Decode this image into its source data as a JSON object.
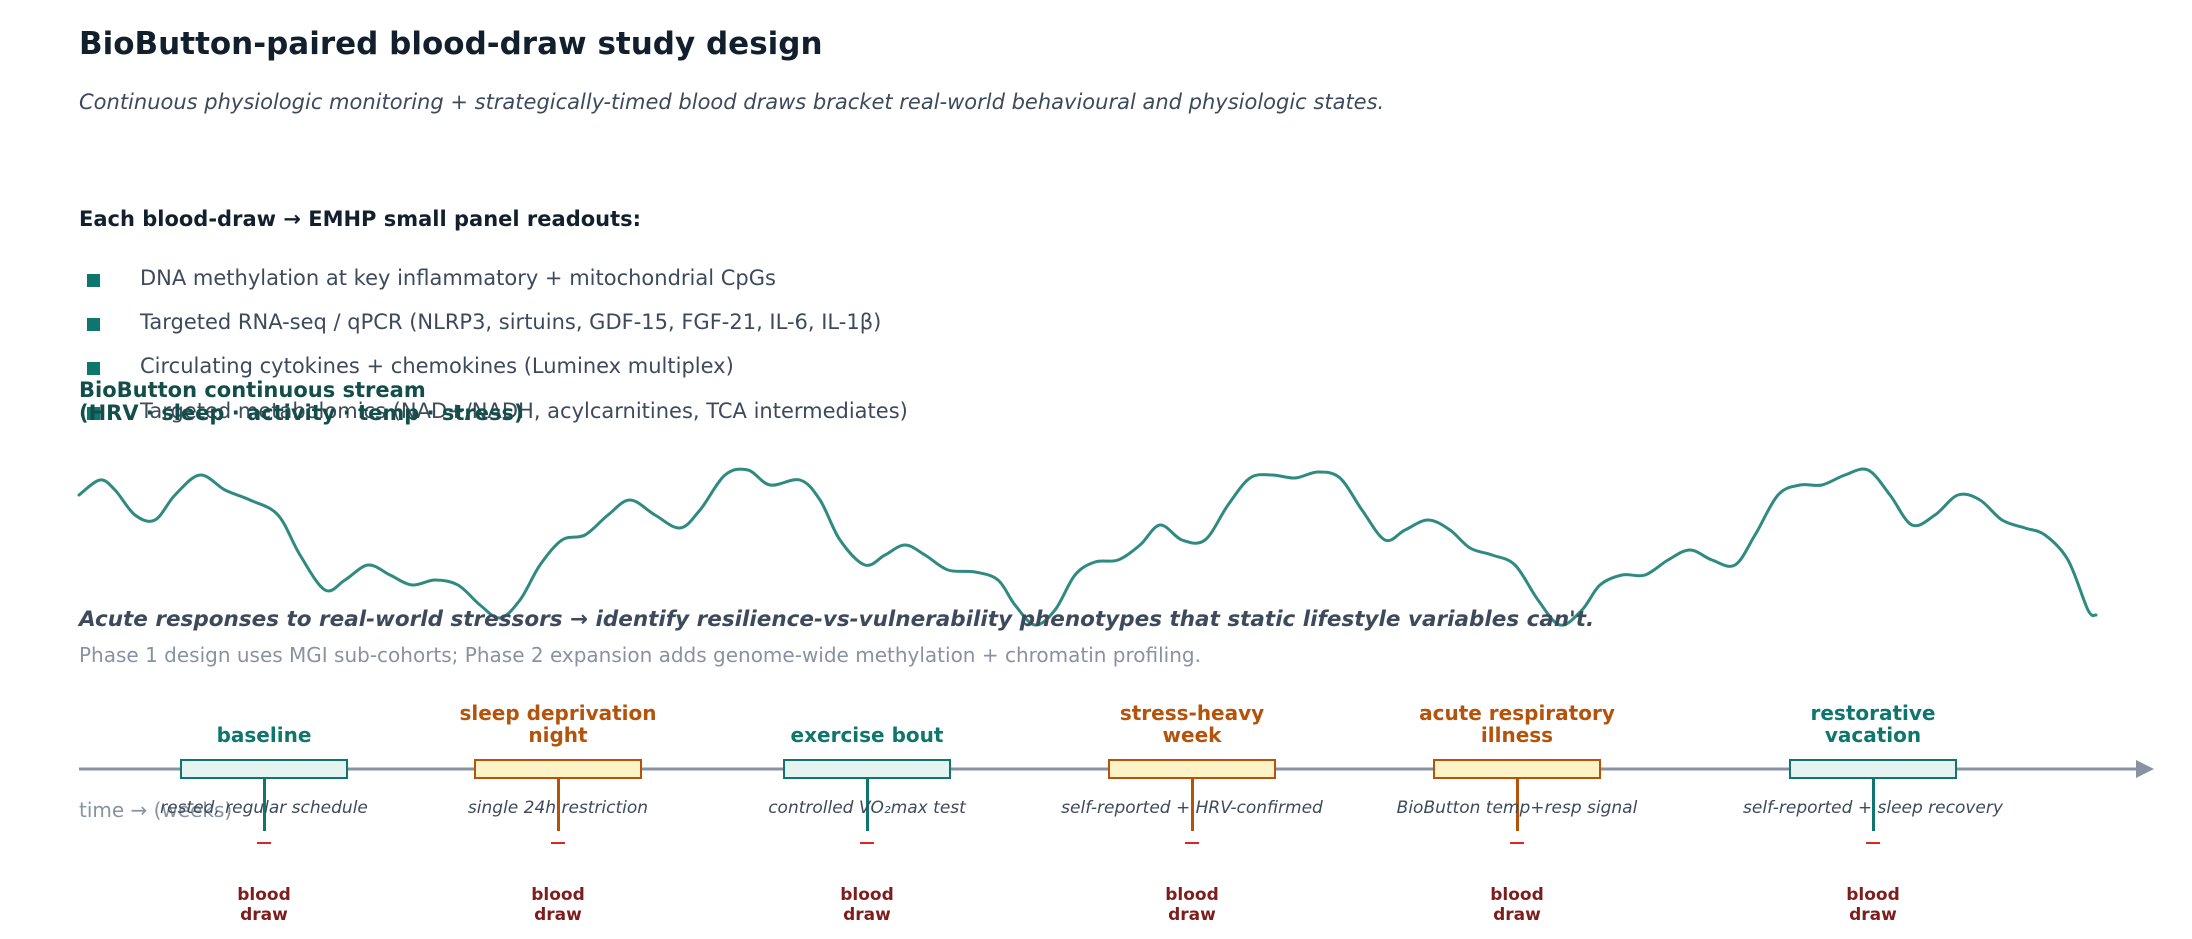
{
  "title": "BioButton-paired blood-draw study design",
  "subtitle": "Continuous physiologic monitoring + strategically-timed blood draws bracket real-world behavioural and physiologic states.",
  "panel_heading": "Each blood-draw → EMHP small panel readouts:",
  "readouts": [
    "DNA methylation at key inflammatory + mitochondrial CpGs",
    "Targeted RNA-seq / qPCR (NLRP3, sirtuins, GDF-15, FGF-21, IL-6, IL-1β)",
    "Circulating cytokines + chemokines (Luminex multiplex)",
    "Targeted metabolomics (NAD+/NADH, acylcarnitines, TCA intermediates)"
  ],
  "stream": {
    "title_line1": "BioButton continuous stream",
    "title_line2": "(HRV · sleep · activity · temp · stress)",
    "color": "#2f8a80"
  },
  "note": "Acute responses to real-world stressors → identify resilience-vs-vulnerability phenotypes that static lifestyle variables can't.",
  "phase_note": "Phase 1 design uses MGI sub-cohorts; Phase 2 expansion adds genome-wide methylation + chromatin profiling.",
  "time_axis_label": "time → (weeks)",
  "colors": {
    "teal": "#0f766e",
    "teal_fill": "#e6f4f1",
    "orange": "#b45309",
    "orange_fill": "#fef3c7",
    "axis": "#8892a2",
    "draw_marker": "#dc2626",
    "draw_label": "#7f1d1d"
  },
  "events": [
    {
      "title_line1": "baseline",
      "title_line2": "",
      "sub": "rested, regular schedule",
      "kind": "teal",
      "draw_line1": "blood",
      "draw_line2": "draw"
    },
    {
      "title_line1": "sleep deprivation",
      "title_line2": "night",
      "sub": "single 24h restriction",
      "kind": "orange",
      "draw_line1": "blood",
      "draw_line2": "draw"
    },
    {
      "title_line1": "exercise bout",
      "title_line2": "",
      "sub": "controlled VO₂max test",
      "kind": "teal",
      "draw_line1": "blood",
      "draw_line2": "draw"
    },
    {
      "title_line1": "stress-heavy",
      "title_line2": "week",
      "sub": "self-reported + HRV-confirmed",
      "kind": "orange",
      "draw_line1": "blood",
      "draw_line2": "draw"
    },
    {
      "title_line1": "acute respiratory",
      "title_line2": "illness",
      "sub": "BioButton temp+resp signal",
      "kind": "orange",
      "draw_line1": "blood",
      "draw_line2": "draw"
    },
    {
      "title_line1": "restorative",
      "title_line2": "vacation",
      "sub": "self-reported + sleep recovery",
      "kind": "teal",
      "draw_line1": "blood",
      "draw_line2": "draw"
    }
  ]
}
